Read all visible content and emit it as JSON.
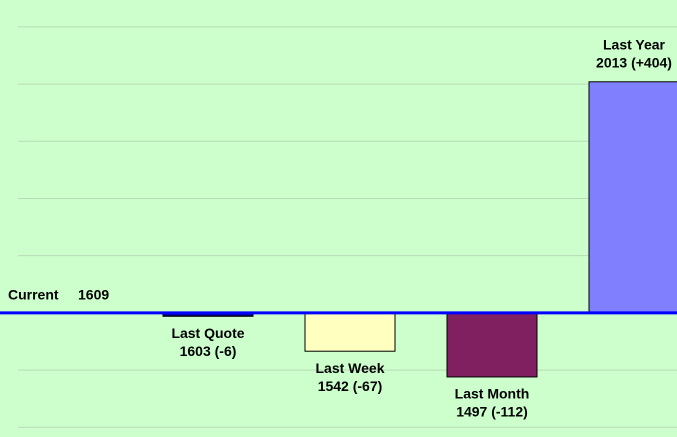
{
  "chart_data": {
    "type": "bar",
    "categories": [
      "Last Quote",
      "Last Week",
      "Last Month",
      "Last Year"
    ],
    "values": [
      1603,
      1542,
      1497,
      2013
    ],
    "value_labels": [
      "1603 (-6)",
      "1542 (-67)",
      "1497 (-112)",
      "2013 (+404)"
    ],
    "colors": [
      "#000080",
      "#ffffc0",
      "#802060",
      "#8080ff"
    ],
    "baseline": 1609,
    "baseline_label": "Current",
    "baseline_color": "#0000ff",
    "ylim": [
      1392,
      2156
    ],
    "yticks": [
      1409,
      1509,
      1609,
      1709,
      1809,
      1909,
      2009,
      2109
    ],
    "grid": true,
    "background": "#ccffcc"
  }
}
